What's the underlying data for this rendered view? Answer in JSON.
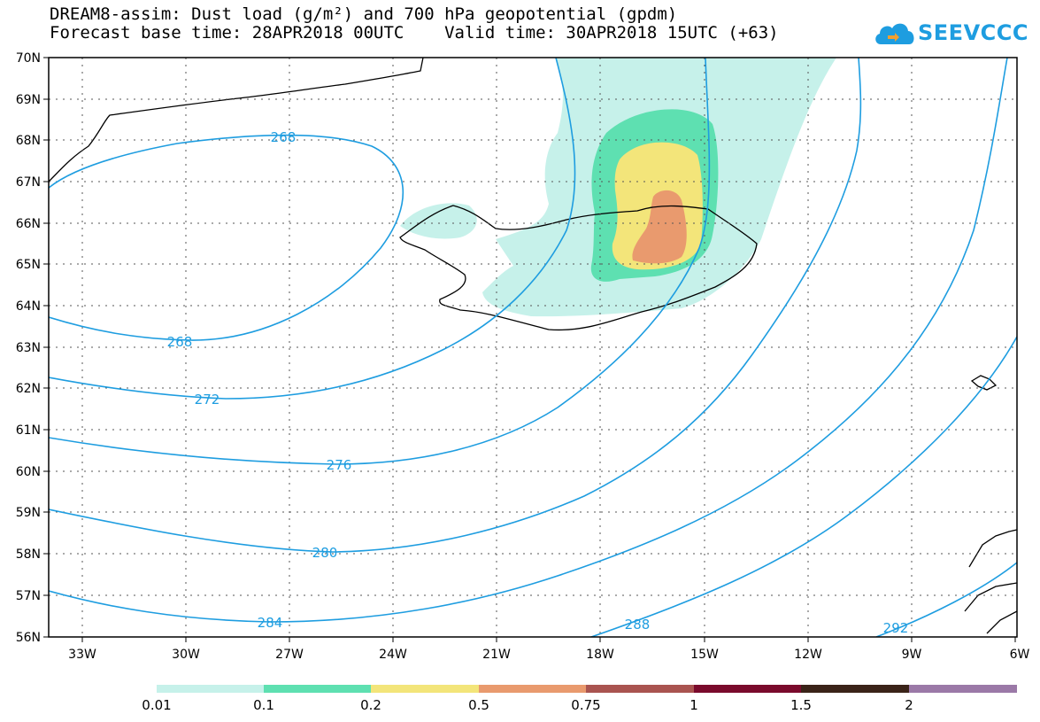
{
  "title_line1": "DREAM8-assim: Dust load (g/m²) and 700 hPa geopotential (gpdm)",
  "title_line2": "Forecast base time: 28APR2018 00UTC    Valid time: 30APR2018 15UTC (+63)",
  "logo_text": "SEEVCCC",
  "map": {
    "lon_labels": [
      "33W",
      "30W",
      "27W",
      "24W",
      "21W",
      "18W",
      "15W",
      "12W",
      "9W",
      "6W"
    ],
    "lat_labels": [
      "70N",
      "69N",
      "68N",
      "67N",
      "66N",
      "65N",
      "64N",
      "63N",
      "62N",
      "61N",
      "60N",
      "59N",
      "58N",
      "57N",
      "56N"
    ],
    "contour_color": "#1e9de0",
    "contour_labels": [
      "268",
      "268",
      "272",
      "276",
      "280",
      "284",
      "288",
      "292"
    ]
  },
  "colorbar": {
    "labels": [
      "0.01",
      "0.1",
      "0.2",
      "0.5",
      "0.75",
      "1",
      "1.5",
      "2"
    ],
    "colors": [
      "#c6f1ea",
      "#5ee0b1",
      "#f3e57a",
      "#e99a6e",
      "#a95450",
      "#7a0a2c",
      "#3a2318",
      "#9b79a7"
    ]
  }
}
